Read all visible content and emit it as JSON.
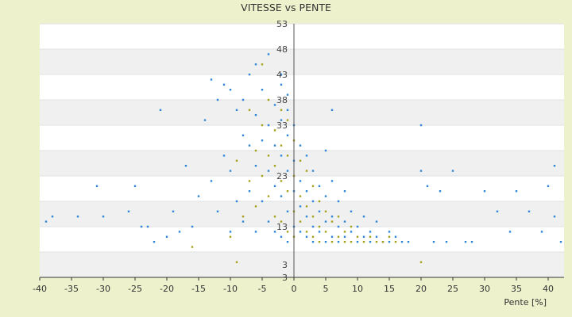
{
  "chart_data": {
    "type": "scatter",
    "title": "VITESSE vs PENTE",
    "xlabel": "Pente [%]",
    "ylabel": "",
    "xlim": [
      -40,
      42
    ],
    "ylim": [
      3,
      53
    ],
    "x_ticks": [
      "-40",
      "-35",
      "-30",
      "-25",
      "-20",
      "-15",
      "-10",
      "-5",
      "0",
      "5",
      "10",
      "15",
      "20",
      "25",
      "30",
      "35",
      "40"
    ],
    "y_ticks": [
      "3",
      "3",
      "13",
      "23",
      "33",
      "43",
      "53"
    ],
    "y_ticks_extra": [
      {
        "label": "48",
        "value": 48
      },
      {
        "label": "38",
        "value": 38
      }
    ],
    "grid": true,
    "legend": "none",
    "colors": {
      "series_a": "#2f86d6",
      "series_b": "#a6a01a",
      "band": "#f0f0f0",
      "axis": "#333333"
    },
    "series": [
      {
        "color": "#2f86d6",
        "points": [
          [
            -39,
            14
          ],
          [
            -38,
            15
          ],
          [
            -34,
            15
          ],
          [
            -31,
            21
          ],
          [
            -30,
            15
          ],
          [
            -26,
            16
          ],
          [
            -25,
            21
          ],
          [
            -24,
            13
          ],
          [
            -23,
            13
          ],
          [
            -22,
            10
          ],
          [
            -20,
            11
          ],
          [
            -19,
            16
          ],
          [
            -18,
            12
          ],
          [
            -17,
            25
          ],
          [
            -16,
            13
          ],
          [
            -15,
            19
          ],
          [
            -14,
            34
          ],
          [
            -13,
            42
          ],
          [
            -13,
            22
          ],
          [
            -12,
            38
          ],
          [
            -12,
            16
          ],
          [
            -11,
            41
          ],
          [
            -11,
            27
          ],
          [
            -10,
            40
          ],
          [
            -10,
            24
          ],
          [
            -10,
            12
          ],
          [
            -9,
            36
          ],
          [
            -9,
            18
          ],
          [
            -8,
            31
          ],
          [
            -8,
            14
          ],
          [
            -7,
            43
          ],
          [
            -7,
            29
          ],
          [
            -7,
            20
          ],
          [
            -6,
            35
          ],
          [
            -6,
            25
          ],
          [
            -6,
            12
          ],
          [
            -5,
            40
          ],
          [
            -5,
            30
          ],
          [
            -5,
            18
          ],
          [
            -4,
            33
          ],
          [
            -4,
            24
          ],
          [
            -4,
            14
          ],
          [
            -3,
            37
          ],
          [
            -3,
            29
          ],
          [
            -3,
            21
          ],
          [
            -3,
            12
          ],
          [
            -2,
            41
          ],
          [
            -2,
            34
          ],
          [
            -2,
            27
          ],
          [
            -2,
            19
          ],
          [
            -2,
            11
          ],
          [
            -1,
            39
          ],
          [
            -1,
            31
          ],
          [
            -1,
            24
          ],
          [
            -1,
            16
          ],
          [
            -1,
            10
          ],
          [
            0,
            33
          ],
          [
            0,
            26
          ],
          [
            0,
            20
          ],
          [
            0,
            13
          ],
          [
            1,
            29
          ],
          [
            1,
            22
          ],
          [
            1,
            17
          ],
          [
            1,
            12
          ],
          [
            2,
            27
          ],
          [
            2,
            20
          ],
          [
            2,
            15
          ],
          [
            2,
            11
          ],
          [
            3,
            24
          ],
          [
            3,
            18
          ],
          [
            3,
            13
          ],
          [
            3,
            10
          ],
          [
            4,
            21
          ],
          [
            4,
            16
          ],
          [
            4,
            12
          ],
          [
            5,
            28
          ],
          [
            5,
            19
          ],
          [
            5,
            14
          ],
          [
            5,
            10
          ],
          [
            6,
            22
          ],
          [
            6,
            15
          ],
          [
            6,
            11
          ],
          [
            7,
            18
          ],
          [
            7,
            13
          ],
          [
            7,
            10
          ],
          [
            8,
            20
          ],
          [
            8,
            14
          ],
          [
            8,
            11
          ],
          [
            9,
            16
          ],
          [
            9,
            12
          ],
          [
            10,
            13
          ],
          [
            10,
            10
          ],
          [
            11,
            15
          ],
          [
            11,
            11
          ],
          [
            12,
            12
          ],
          [
            12,
            10
          ],
          [
            13,
            14
          ],
          [
            13,
            11
          ],
          [
            14,
            10
          ],
          [
            15,
            12
          ],
          [
            15,
            10
          ],
          [
            16,
            11
          ],
          [
            17,
            10
          ],
          [
            18,
            10
          ],
          [
            20,
            24
          ],
          [
            21,
            21
          ],
          [
            22,
            10
          ],
          [
            23,
            20
          ],
          [
            24,
            10
          ],
          [
            25,
            24
          ],
          [
            27,
            10
          ],
          [
            28,
            10
          ],
          [
            30,
            20
          ],
          [
            32,
            16
          ],
          [
            34,
            12
          ],
          [
            35,
            20
          ],
          [
            37,
            16
          ],
          [
            39,
            12
          ],
          [
            40,
            21
          ],
          [
            41,
            15
          ],
          [
            42,
            10
          ],
          [
            41,
            25
          ],
          [
            -6,
            45
          ],
          [
            -2,
            43
          ],
          [
            -4,
            47
          ],
          [
            -8,
            38
          ],
          [
            -1,
            36
          ],
          [
            6,
            36
          ],
          [
            20,
            33
          ],
          [
            -21,
            36
          ]
        ]
      },
      {
        "color": "#a6a01a",
        "points": [
          [
            -10,
            11
          ],
          [
            -9,
            26
          ],
          [
            -8,
            15
          ],
          [
            -7,
            36
          ],
          [
            -7,
            22
          ],
          [
            -6,
            28
          ],
          [
            -6,
            17
          ],
          [
            -5,
            45
          ],
          [
            -5,
            33
          ],
          [
            -5,
            23
          ],
          [
            -4,
            38
          ],
          [
            -4,
            27
          ],
          [
            -4,
            19
          ],
          [
            -3,
            32
          ],
          [
            -3,
            25
          ],
          [
            -3,
            15
          ],
          [
            -2,
            36
          ],
          [
            -2,
            29
          ],
          [
            -2,
            22
          ],
          [
            -2,
            14
          ],
          [
            -1,
            34
          ],
          [
            -1,
            27
          ],
          [
            -1,
            20
          ],
          [
            -1,
            12
          ],
          [
            0,
            30
          ],
          [
            0,
            23
          ],
          [
            0,
            16
          ],
          [
            0,
            11
          ],
          [
            1,
            26
          ],
          [
            1,
            19
          ],
          [
            1,
            14
          ],
          [
            2,
            24
          ],
          [
            2,
            17
          ],
          [
            2,
            12
          ],
          [
            3,
            21
          ],
          [
            3,
            15
          ],
          [
            3,
            11
          ],
          [
            4,
            18
          ],
          [
            4,
            13
          ],
          [
            4,
            10
          ],
          [
            5,
            16
          ],
          [
            5,
            12
          ],
          [
            6,
            14
          ],
          [
            6,
            10
          ],
          [
            7,
            15
          ],
          [
            7,
            11
          ],
          [
            8,
            12
          ],
          [
            8,
            10
          ],
          [
            9,
            13
          ],
          [
            9,
            10
          ],
          [
            10,
            11
          ],
          [
            11,
            10
          ],
          [
            12,
            11
          ],
          [
            13,
            10
          ],
          [
            14,
            10
          ],
          [
            15,
            11
          ],
          [
            16,
            10
          ],
          [
            20,
            6
          ],
          [
            -16,
            9
          ],
          [
            -9,
            6
          ]
        ]
      }
    ]
  }
}
